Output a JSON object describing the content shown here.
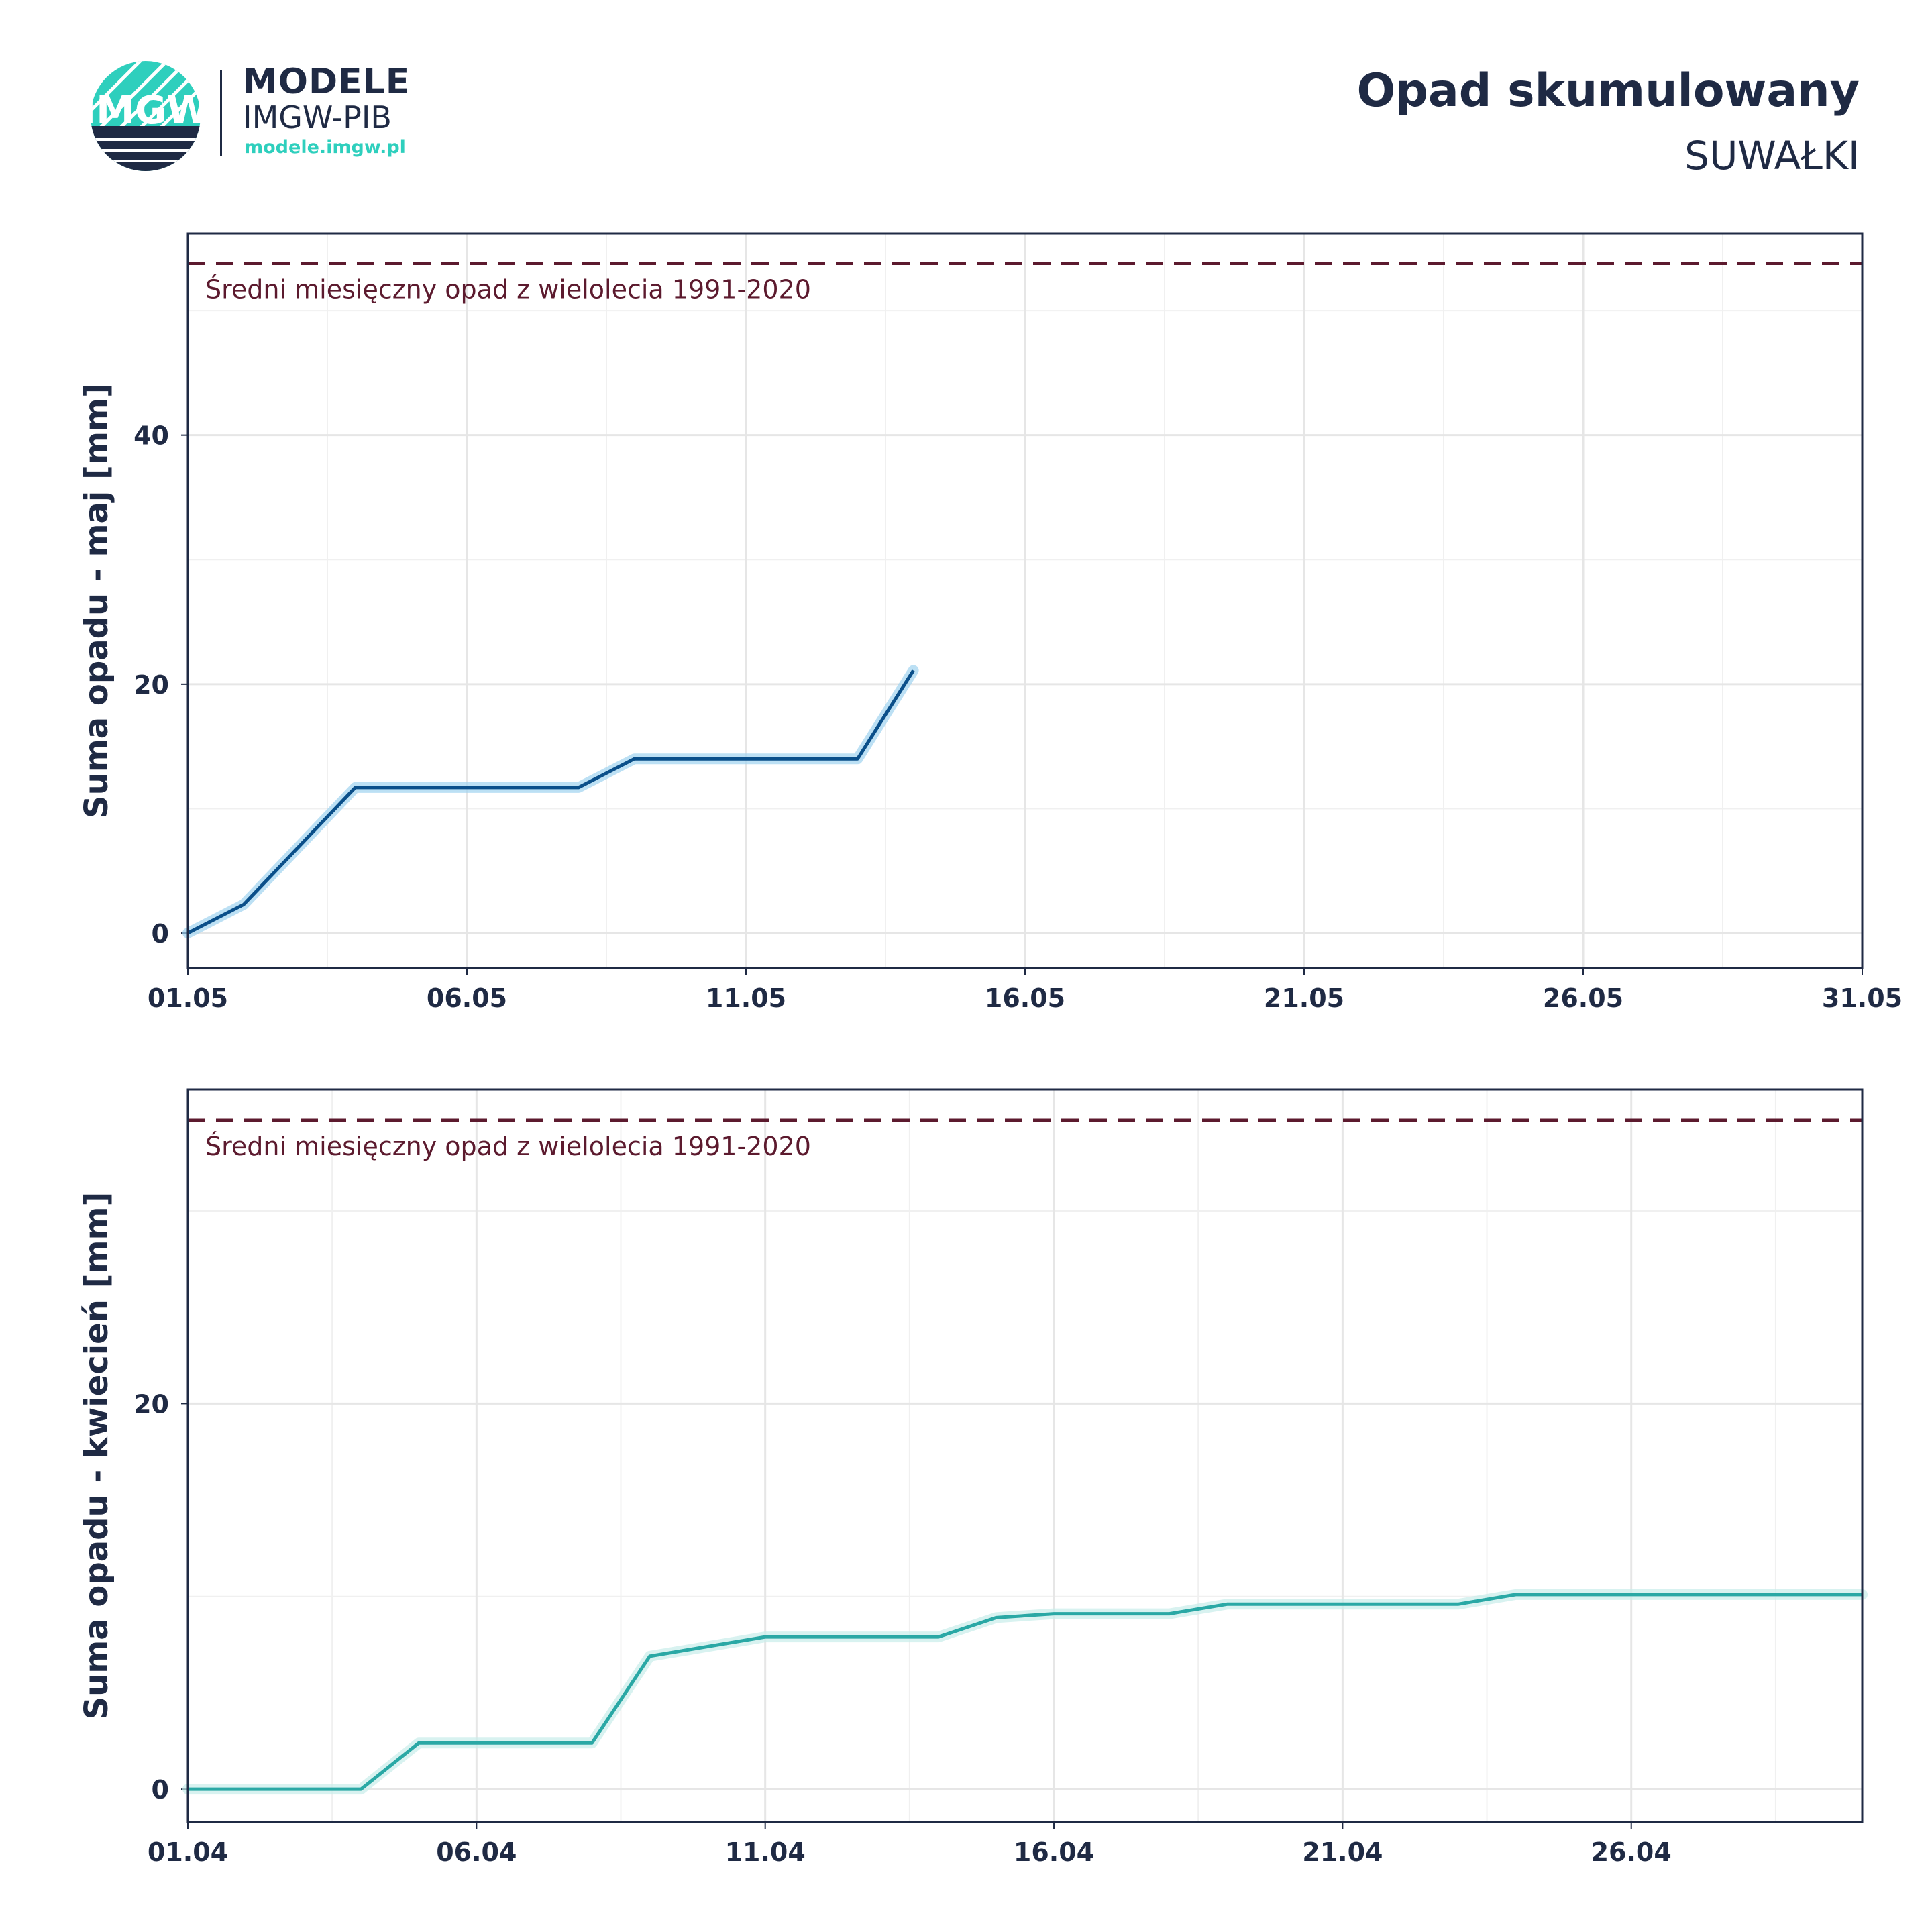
{
  "header": {
    "logo_text": "IMGW",
    "brand_line1": "MODELE",
    "brand_line2": "IMGW-PIB",
    "brand_url": "modele.imgw.pl",
    "title": "Opad skumulowany",
    "subtitle": "SUWAŁKI"
  },
  "colors": {
    "text": "#1f2a44",
    "grid": "#e6e6e6",
    "reference_line": "#5c1a2e",
    "may_series": "#0a4f8a",
    "may_band": "#9fd3ef",
    "april_series": "#2aa8a5",
    "april_band": "#c7ece9",
    "logo_teal": "#2ecfbd"
  },
  "chart_data": [
    {
      "type": "line",
      "ylabel": "Suma opadu - maj  [mm]",
      "xlabel": "",
      "x_ticks": [
        "01.05",
        "06.05",
        "11.05",
        "16.05",
        "21.05",
        "26.05",
        "31.05"
      ],
      "xlim": [
        1,
        31
      ],
      "ylim": [
        -2.8,
        56.2
      ],
      "y_ticks": [
        0,
        20,
        40
      ],
      "grid": true,
      "reference_line": {
        "value": 53.8,
        "label": "Średni miesięczny opad z wielolecia 1991-2020"
      },
      "series": [
        {
          "x": [
            1,
            2,
            4,
            5,
            6,
            7,
            8,
            9,
            10,
            11,
            12,
            13,
            14
          ],
          "values": [
            0,
            2.3,
            11.7,
            11.7,
            11.7,
            11.7,
            11.7,
            14.0,
            14.0,
            14.0,
            14.0,
            14.0,
            21.1
          ]
        }
      ]
    },
    {
      "type": "line",
      "ylabel": "Suma opadu - kwiecień  [mm]",
      "xlabel": "",
      "x_ticks": [
        "01.04",
        "06.04",
        "11.04",
        "16.04",
        "21.04",
        "26.04"
      ],
      "xlim": [
        1,
        30
      ],
      "ylim": [
        -1.7,
        36.3
      ],
      "y_ticks": [
        0,
        20
      ],
      "grid": true,
      "reference_line": {
        "value": 34.7,
        "label": "Średni miesięczny opad z wielolecia 1991-2020"
      },
      "series": [
        {
          "x": [
            1,
            2,
            3,
            4,
            5,
            6,
            7,
            8,
            9,
            10,
            11,
            12,
            13,
            14,
            15,
            16,
            17,
            18,
            19,
            20,
            21,
            22,
            23,
            24,
            25,
            26,
            27,
            28,
            29,
            30
          ],
          "values": [
            0,
            0,
            0,
            0,
            2.4,
            2.4,
            2.4,
            2.4,
            6.9,
            7.4,
            7.9,
            7.9,
            7.9,
            7.9,
            8.9,
            9.1,
            9.1,
            9.1,
            9.6,
            9.6,
            9.6,
            9.6,
            9.6,
            10.1,
            10.1,
            10.1,
            10.1,
            10.1,
            10.1,
            10.1
          ]
        }
      ]
    }
  ]
}
